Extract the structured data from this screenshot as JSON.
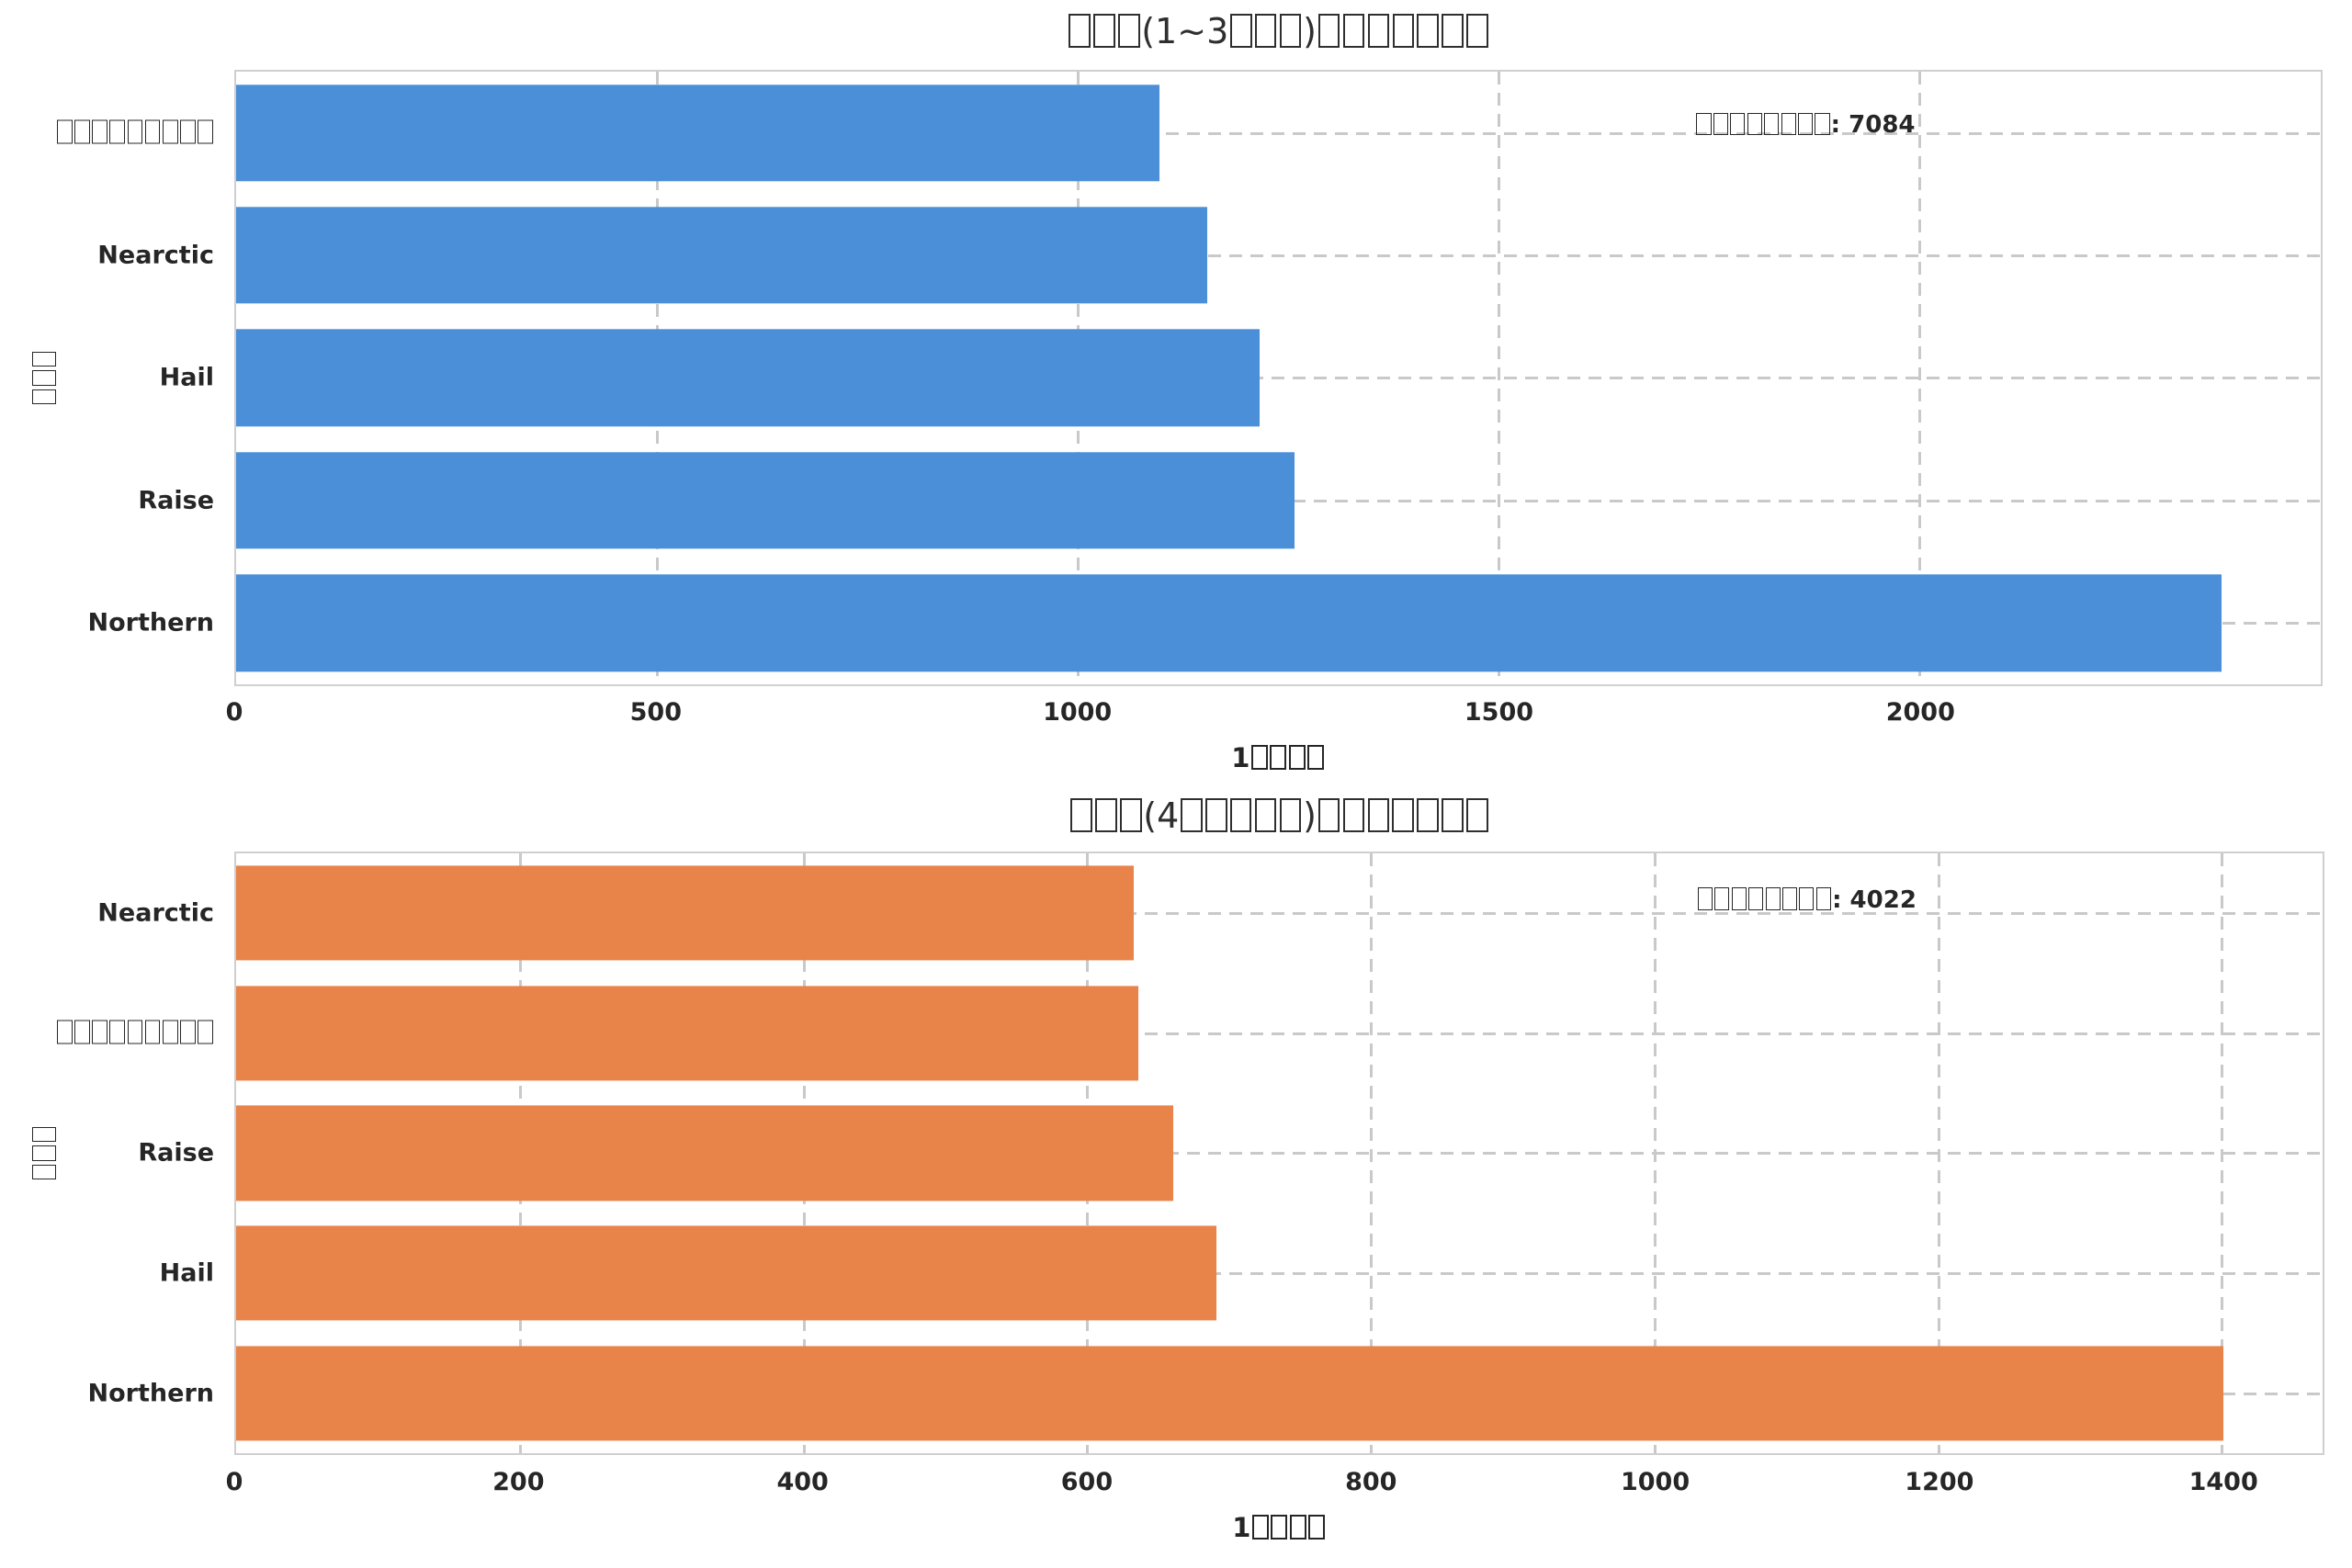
{
  "colors": {
    "bar_blue": "#4a8fd7",
    "bar_orange": "#e8834a",
    "grid": "#c9c9c9",
    "spine": "#cfcfcf",
    "text": "#262626"
  },
  "chart_data": [
    {
      "type": "bar",
      "orientation": "horizontal",
      "title": "□□□(1~3□□□)□□□□□□□",
      "xlabel": "1□□□□",
      "ylabel": "□□□",
      "annotation": "□□□□□□□□: 7084",
      "total": 7084,
      "bar_color": "#4a8fd7",
      "categories": [
        "□□□□□□□□□",
        "Nearctic",
        "Hail",
        "Raise",
        "Northern"
      ],
      "values": [
        1097,
        1154,
        1216,
        1258,
        2359
      ],
      "xticks": [
        0,
        500,
        1000,
        1500,
        2000
      ],
      "xlim": [
        0,
        2477
      ],
      "grid": "dashed"
    },
    {
      "type": "bar",
      "orientation": "horizontal",
      "title": "□□□(4□□□□□)□□□□□□□",
      "xlabel": "1□□□□",
      "ylabel": "□□□",
      "annotation": "□□□□□□□□: 4022",
      "total": 4022,
      "bar_color": "#e8834a",
      "categories": [
        "Nearctic",
        "□□□□□□□□□",
        "Raise",
        "Hail",
        "Northern"
      ],
      "values": [
        633,
        636,
        661,
        691,
        1401
      ],
      "xticks": [
        0,
        200,
        400,
        600,
        800,
        1000,
        1200,
        1400
      ],
      "xlim": [
        0,
        1471
      ],
      "grid": "dashed"
    }
  ]
}
